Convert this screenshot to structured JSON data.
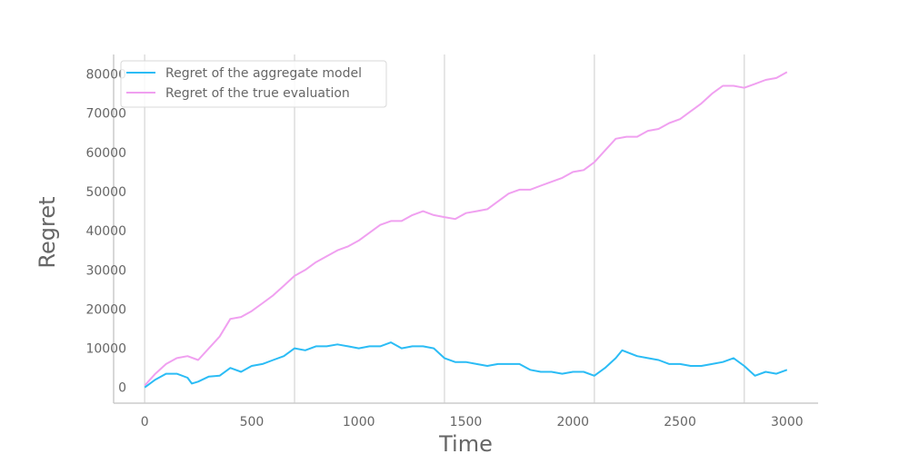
{
  "chart_data": {
    "type": "line",
    "title": "",
    "xlabel": "Time",
    "ylabel": "Regret",
    "xlim": [
      -145,
      3145
    ],
    "ylim": [
      -4000,
      85000
    ],
    "xticks": [
      0,
      500,
      1000,
      1500,
      2000,
      2500,
      3000
    ],
    "yticks": [
      0,
      10000,
      20000,
      30000,
      40000,
      50000,
      60000,
      70000,
      80000
    ],
    "vgrid": [
      0,
      700,
      1400,
      2100,
      2800
    ],
    "grid": "vertical",
    "legend_position": "upper-left",
    "series": [
      {
        "name": "Regret of the aggregate model",
        "color": "#2bbcf5",
        "x": [
          0,
          50,
          100,
          150,
          200,
          220,
          250,
          300,
          350,
          400,
          450,
          500,
          550,
          600,
          650,
          700,
          750,
          800,
          850,
          900,
          950,
          1000,
          1050,
          1100,
          1150,
          1200,
          1250,
          1300,
          1350,
          1400,
          1450,
          1500,
          1550,
          1600,
          1650,
          1700,
          1750,
          1800,
          1850,
          1900,
          1950,
          2000,
          2050,
          2100,
          2150,
          2200,
          2230,
          2300,
          2350,
          2400,
          2450,
          2500,
          2550,
          2600,
          2650,
          2700,
          2750,
          2800,
          2850,
          2900,
          2950,
          3000
        ],
        "values": [
          0,
          2000,
          3500,
          3500,
          2500,
          1000,
          1500,
          2800,
          3000,
          5000,
          4000,
          5500,
          6000,
          7000,
          8000,
          10000,
          9500,
          10500,
          10500,
          11000,
          10500,
          10000,
          10500,
          10500,
          11500,
          10000,
          10500,
          10500,
          10000,
          7500,
          6500,
          6500,
          6000,
          5500,
          6000,
          6000,
          6000,
          4500,
          4000,
          4000,
          3500,
          4000,
          4000,
          3000,
          5000,
          7500,
          9500,
          8000,
          7500,
          7000,
          6000,
          6000,
          5500,
          5500,
          6000,
          6500,
          7500,
          5500,
          3000,
          4000,
          3500,
          4500
        ]
      },
      {
        "name": "Regret of the true evaluation",
        "color": "#f0a0f0",
        "x": [
          0,
          50,
          100,
          150,
          200,
          250,
          300,
          350,
          400,
          450,
          500,
          550,
          600,
          650,
          700,
          750,
          800,
          850,
          900,
          950,
          1000,
          1050,
          1100,
          1150,
          1200,
          1250,
          1300,
          1350,
          1400,
          1450,
          1500,
          1550,
          1600,
          1650,
          1700,
          1750,
          1800,
          1850,
          1900,
          1950,
          2000,
          2050,
          2100,
          2150,
          2200,
          2250,
          2300,
          2350,
          2400,
          2450,
          2500,
          2550,
          2600,
          2650,
          2700,
          2750,
          2800,
          2850,
          2900,
          2950,
          3000
        ],
        "values": [
          500,
          3500,
          6000,
          7500,
          8000,
          7000,
          10000,
          13000,
          17500,
          18000,
          19500,
          21500,
          23500,
          26000,
          28500,
          30000,
          32000,
          33500,
          35000,
          36000,
          37500,
          39500,
          41500,
          42500,
          42500,
          44000,
          45000,
          44000,
          43500,
          43000,
          44500,
          45000,
          45500,
          47500,
          49500,
          50500,
          50500,
          51500,
          52500,
          53500,
          55000,
          55500,
          57500,
          60500,
          63500,
          64000,
          64000,
          65500,
          66000,
          67500,
          68500,
          70500,
          72500,
          75000,
          77000,
          77000,
          76500,
          77500,
          78500,
          79000,
          80500
        ]
      }
    ]
  }
}
